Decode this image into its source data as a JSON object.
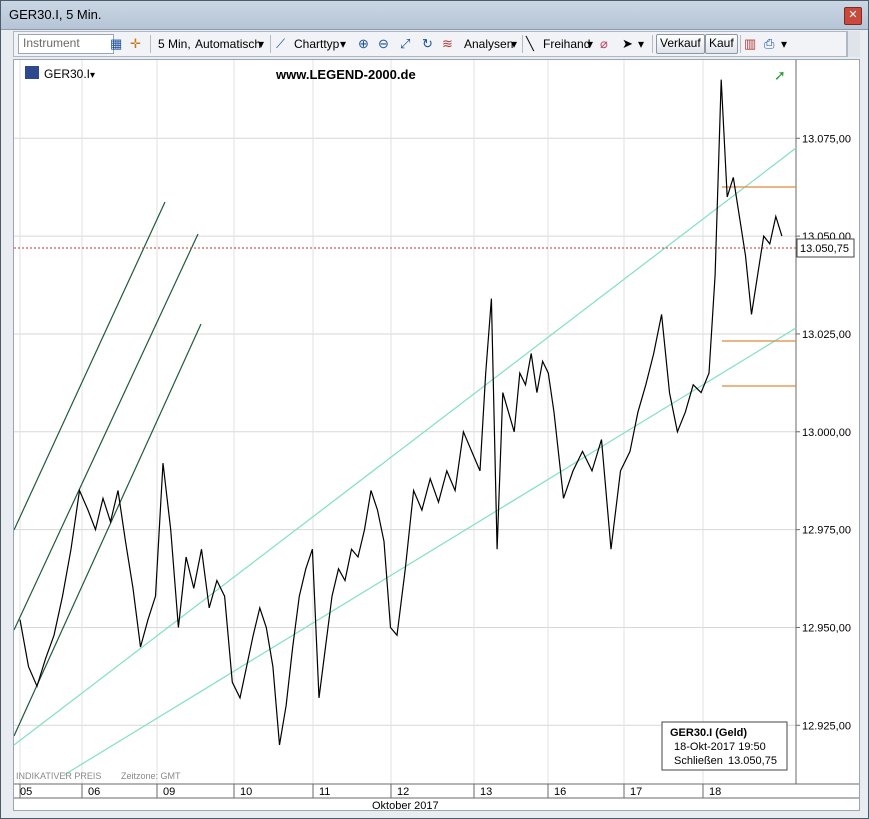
{
  "window": {
    "title": "GER30.I, 5 Min.",
    "close_glyph": "✕"
  },
  "toolbar": {
    "instrument_placeholder": "Instrument",
    "interval_label": "5 Min,",
    "mode_label": "Automatisch",
    "charttype_label": "Charttyp",
    "analysen_label": "Analysen",
    "freihand_label": "Freihand",
    "verkauf_label": "Verkauf",
    "kauf_label": "Kauf",
    "dropdown_glyph": "▾"
  },
  "chart_header": {
    "symbol_label": "GER30.I",
    "watermark": "www.LEGEND-2000.de",
    "dropdown_glyph": "▾"
  },
  "footer": {
    "indicative": "INDIKATIVER PREIS",
    "timezone": "Zeitzone: GMT",
    "month_label": "Oktober 2017"
  },
  "info_box": {
    "title": "GER30.I (Geld)",
    "datetime": "18-Okt-2017 19:50",
    "close_label": "Schließen",
    "close_value": "13.050,75"
  },
  "price_tag": "13.050,75",
  "colors": {
    "price_line": "#c0392b",
    "channel": "#7fe0c4",
    "fan": "#1e5a3a",
    "levels": "#e08a3a",
    "series": "#000000"
  },
  "chart_data": {
    "type": "line",
    "title": "GER30.I, 5 Min.",
    "xlabel": "Oktober 2017",
    "ylabel": "",
    "x_ticks": [
      "05",
      "06",
      "09",
      "10",
      "11",
      "12",
      "13",
      "16",
      "17",
      "18"
    ],
    "y_ticks": [
      "12.925,00",
      "12.950,00",
      "12.975,00",
      "13.000,00",
      "13.025,00",
      "13.050,00",
      "13.075,00"
    ],
    "ylim": [
      12910,
      13095
    ],
    "series": [
      {
        "name": "",
        "values": [
          [
            "05",
            12952
          ],
          [
            "05",
            12940
          ],
          [
            "05",
            12935
          ],
          [
            "05",
            12942
          ],
          [
            "05",
            12948
          ],
          [
            "05",
            12958
          ],
          [
            "05",
            12970
          ],
          [
            "05",
            12985
          ],
          [
            "06",
            12980
          ],
          [
            "06",
            12975
          ],
          [
            "06",
            12983
          ],
          [
            "06",
            12977
          ],
          [
            "06",
            12985
          ],
          [
            "06",
            12972
          ],
          [
            "06",
            12960
          ],
          [
            "06",
            12945
          ],
          [
            "06",
            12952
          ],
          [
            "06",
            12958
          ],
          [
            "09",
            12992
          ],
          [
            "09",
            12975
          ],
          [
            "09",
            12950
          ],
          [
            "09",
            12968
          ],
          [
            "09",
            12960
          ],
          [
            "09",
            12970
          ],
          [
            "09",
            12955
          ],
          [
            "09",
            12962
          ],
          [
            "09",
            12958
          ],
          [
            "09",
            12936
          ],
          [
            "10",
            12932
          ],
          [
            "10",
            12940
          ],
          [
            "10",
            12948
          ],
          [
            "10",
            12955
          ],
          [
            "10",
            12950
          ],
          [
            "10",
            12940
          ],
          [
            "10",
            12920
          ],
          [
            "10",
            12930
          ],
          [
            "10",
            12945
          ],
          [
            "10",
            12958
          ],
          [
            "10",
            12965
          ],
          [
            "10",
            12970
          ],
          [
            "11",
            12932
          ],
          [
            "11",
            12945
          ],
          [
            "11",
            12958
          ],
          [
            "11",
            12965
          ],
          [
            "11",
            12962
          ],
          [
            "11",
            12970
          ],
          [
            "11",
            12968
          ],
          [
            "11",
            12975
          ],
          [
            "11",
            12985
          ],
          [
            "11",
            12980
          ],
          [
            "11",
            12972
          ],
          [
            "11",
            12950
          ],
          [
            "12",
            12948
          ],
          [
            "12",
            12965
          ],
          [
            "12",
            12985
          ],
          [
            "12",
            12980
          ],
          [
            "12",
            12988
          ],
          [
            "12",
            12982
          ],
          [
            "12",
            12990
          ],
          [
            "12",
            12985
          ],
          [
            "12",
            13000
          ],
          [
            "12",
            12995
          ],
          [
            "13",
            12990
          ],
          [
            "13",
            13015
          ],
          [
            "13",
            13034
          ],
          [
            "13",
            12970
          ],
          [
            "13",
            13010
          ],
          [
            "13",
            13005
          ],
          [
            "13",
            13000
          ],
          [
            "13",
            13015
          ],
          [
            "13",
            13012
          ],
          [
            "13",
            13020
          ],
          [
            "13",
            13010
          ],
          [
            "13",
            13018
          ],
          [
            "13",
            13015
          ],
          [
            "16",
            13005
          ],
          [
            "16",
            12983
          ],
          [
            "16",
            12990
          ],
          [
            "16",
            12995
          ],
          [
            "16",
            12990
          ],
          [
            "16",
            12998
          ],
          [
            "16",
            12970
          ],
          [
            "16",
            12990
          ],
          [
            "17",
            12995
          ],
          [
            "17",
            13005
          ],
          [
            "17",
            13012
          ],
          [
            "17",
            13020
          ],
          [
            "17",
            13030
          ],
          [
            "17",
            13010
          ],
          [
            "17",
            13000
          ],
          [
            "17",
            13005
          ],
          [
            "17",
            13012
          ],
          [
            "17",
            13010
          ],
          [
            "18",
            13015
          ],
          [
            "18",
            13040
          ],
          [
            "18",
            13090
          ],
          [
            "18",
            13060
          ],
          [
            "18",
            13065
          ],
          [
            "18",
            13055
          ],
          [
            "18",
            13045
          ],
          [
            "18",
            13030
          ],
          [
            "18",
            13040
          ],
          [
            "18",
            13050
          ],
          [
            "18",
            13048
          ],
          [
            "18",
            13055
          ],
          [
            "18",
            13050
          ]
        ]
      }
    ]
  }
}
